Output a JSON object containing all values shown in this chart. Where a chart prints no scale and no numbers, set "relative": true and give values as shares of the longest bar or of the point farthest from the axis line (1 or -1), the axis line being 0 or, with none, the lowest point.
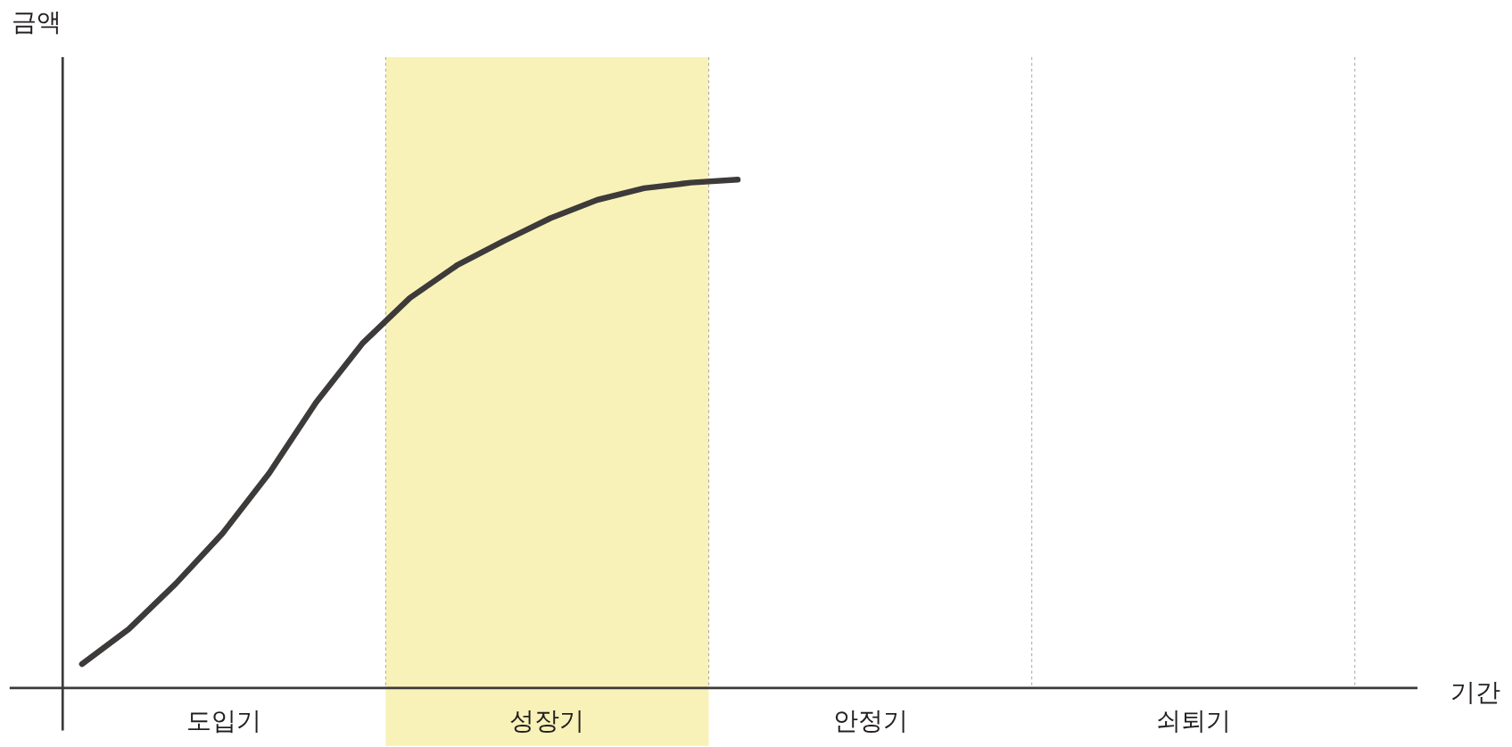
{
  "chart_data": {
    "type": "line",
    "relative": true,
    "xlabel": "기간",
    "categories": [
      null,
      null,
      null,
      null,
      null,
      null,
      null,
      null,
      null,
      null,
      null,
      null,
      null,
      null,
      null,
      null,
      null,
      null,
      null,
      null,
      null,
      null,
      null,
      null,
      null,
      null,
      null,
      null,
      null
    ],
    "values": [
      0.047,
      0.116,
      0.205,
      0.304,
      0.423,
      0.562,
      0.679,
      0.767,
      0.831,
      0.879,
      0.924,
      0.96,
      0.983,
      0.994,
      1.0,
      null,
      null,
      null,
      null,
      null,
      null,
      null,
      null,
      null,
      null,
      null,
      null,
      null,
      null
    ],
    "color": "#3d3a3a",
    "annotations": [
      "도입기",
      "성장기",
      "안정기",
      "쇠퇴기",
      "금액"
    ]
  }
}
